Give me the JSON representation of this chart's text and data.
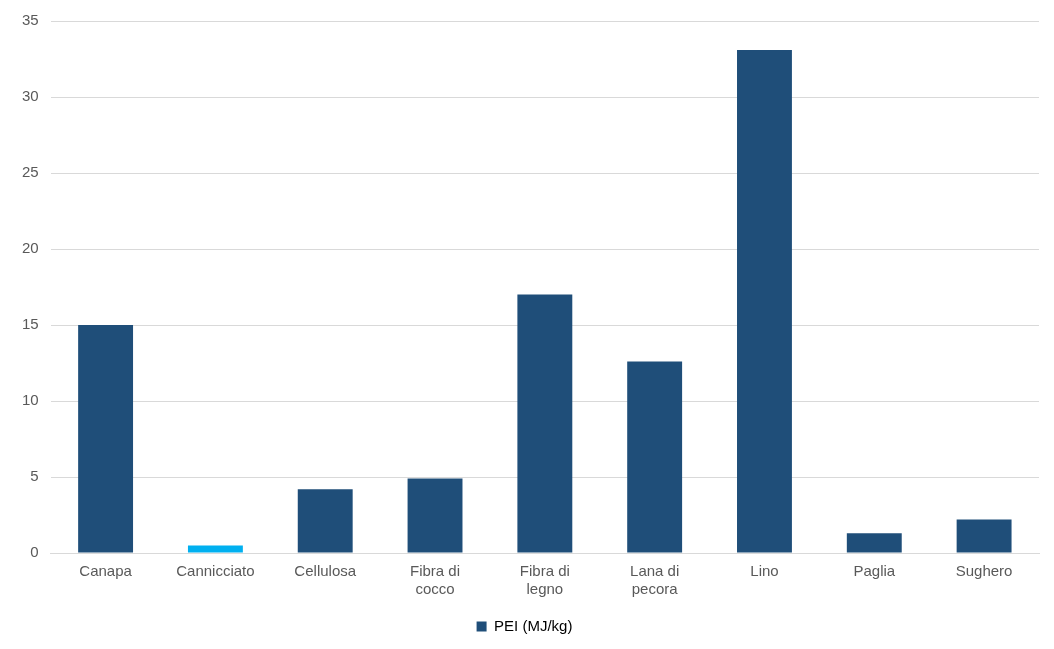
{
  "chart_data": {
    "type": "bar",
    "categories": [
      "Canapa",
      "Cannicciato",
      "Cellulosa",
      "Fibra di cocco",
      "Fibra di legno",
      "Lana di pecora",
      "Lino",
      "Paglia",
      "Sughero"
    ],
    "series": [
      {
        "name": "PEI (MJ/kg)",
        "color": "#1f4e79",
        "colors": [
          "#1f4e79",
          "#00b0f0",
          "#1f4e79",
          "#1f4e79",
          "#1f4e79",
          "#1f4e79",
          "#1f4e79",
          "#1f4e79",
          "#1f4e79"
        ],
        "values": [
          15,
          0.5,
          4.2,
          4.9,
          17,
          12.6,
          33.1,
          1.3,
          2.2
        ]
      }
    ],
    "ylim": [
      0,
      35
    ],
    "yticks": [
      0,
      5,
      10,
      15,
      20,
      25,
      30,
      35
    ],
    "grid": "y",
    "legend": "bottom"
  }
}
